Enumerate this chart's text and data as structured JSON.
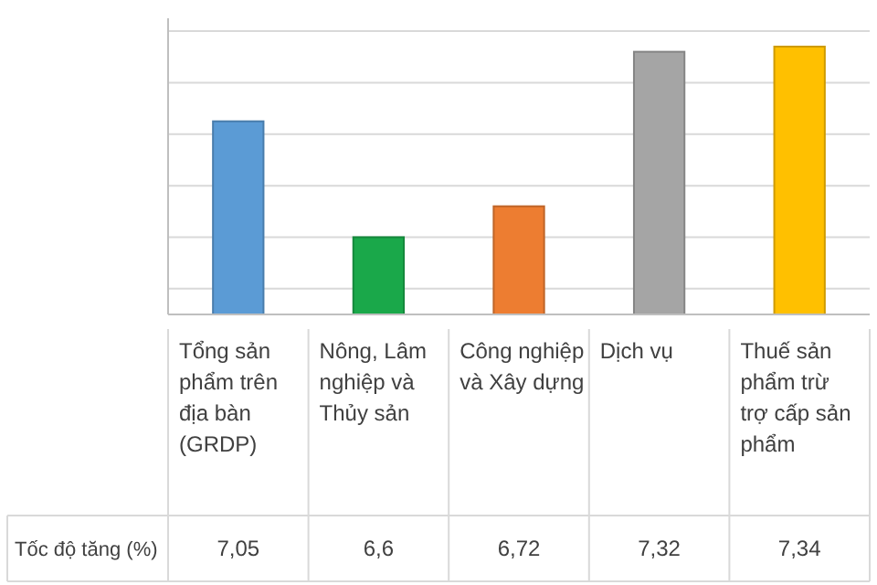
{
  "chart_data": {
    "type": "bar",
    "categories": [
      "Tổng sản phẩm trên địa bàn (GRDP)",
      "Nông, Lâm nghiệp và Thủy sản",
      "Công nghiệp và Xây dựng",
      "Dịch vụ",
      "Thuế sản phẩm trừ trợ cấp sản phẩm"
    ],
    "series": [
      {
        "name": "Tốc độ tăng (%)",
        "values": [
          7.05,
          6.6,
          6.72,
          7.32,
          7.34
        ],
        "value_labels": [
          "7,05",
          "6,6",
          "6,72",
          "7,32",
          "7,34"
        ],
        "colors": [
          "#5b9bd5",
          "#1aa84a",
          "#ed7d31",
          "#a5a5a5",
          "#ffc000"
        ]
      }
    ],
    "ylim": [
      6.3,
      7.45
    ],
    "yticks": [
      {
        "value": 6.4,
        "label": null
      },
      {
        "value": 6.6,
        "label": null
      },
      {
        "value": 6.8,
        "label": null
      },
      {
        "value": 7.0,
        "label": null
      },
      {
        "value": 7.2,
        "label": null
      },
      {
        "value": 7.4,
        "label": null
      }
    ],
    "grid": "y",
    "tick_labels": "x"
  }
}
